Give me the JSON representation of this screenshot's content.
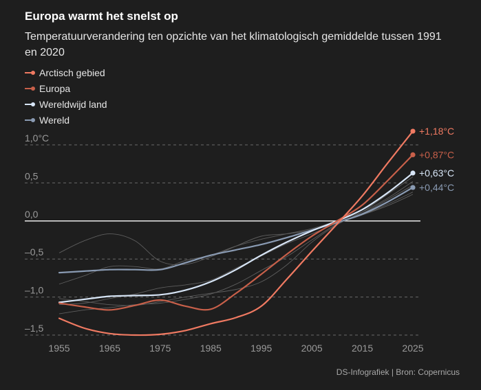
{
  "title": "Europa warmt het snelst op",
  "subtitle": "Temperatuurverandering ten opzichte van het klimatologisch gemiddelde tussen 1991 en 2020",
  "source": "DS-Infografiek | Bron: Copernicus",
  "legend": [
    {
      "label": "Arctisch gebied",
      "color": "#f07a62"
    },
    {
      "label": "Europa",
      "color": "#c8604a"
    },
    {
      "label": "Wereldwijd land",
      "color": "#d8e6f7"
    },
    {
      "label": "Wereld",
      "color": "#8a9bb3"
    }
  ],
  "chart_data": {
    "type": "line",
    "title": "Europa warmt het snelst op",
    "subtitle": "Temperatuurverandering ten opzichte van het klimatologisch gemiddelde tussen 1991 en 2020",
    "xlabel": "",
    "ylabel": "",
    "xlim": [
      1955,
      2025
    ],
    "ylim": [
      -1.5,
      1.0
    ],
    "x_ticks": [
      1955,
      1965,
      1975,
      1985,
      1995,
      2005,
      2015,
      2025
    ],
    "x_tick_labels": [
      "1955",
      "1965",
      "1975",
      "1985",
      "1995",
      "2005",
      "2015",
      "2025"
    ],
    "y_ticks": [
      1.0,
      0.5,
      0.0,
      -0.5,
      -1.0,
      -1.5
    ],
    "y_tick_labels": [
      "1,0°C",
      "0,5",
      "0,0",
      "–0,5",
      "–1,0",
      "–1,5"
    ],
    "zero_line": true,
    "grid": "dashed horizontal",
    "legend_position": "top-left",
    "series": [
      {
        "name": "Arctisch gebied",
        "color": "#f07a62",
        "x": [
          1955,
          1960,
          1965,
          1970,
          1975,
          1980,
          1985,
          1990,
          1995,
          2000,
          2005,
          2010,
          2015,
          2020,
          2025
        ],
        "y": [
          -1.28,
          -1.41,
          -1.48,
          -1.5,
          -1.49,
          -1.44,
          -1.35,
          -1.27,
          -1.12,
          -0.77,
          -0.4,
          -0.04,
          0.33,
          0.76,
          1.18
        ],
        "end_label": "+1,18°C"
      },
      {
        "name": "Europa",
        "color": "#c8604a",
        "x": [
          1955,
          1960,
          1965,
          1970,
          1975,
          1980,
          1985,
          1990,
          1995,
          2000,
          2005,
          2010,
          2015,
          2020,
          2025
        ],
        "y": [
          -1.08,
          -1.13,
          -1.17,
          -1.11,
          -1.04,
          -1.12,
          -1.16,
          -0.95,
          -0.7,
          -0.44,
          -0.2,
          0.0,
          0.21,
          0.53,
          0.87
        ],
        "end_label": "+0,87°C"
      },
      {
        "name": "Wereldwijd land",
        "color": "#d8e6f7",
        "x": [
          1955,
          1960,
          1965,
          1970,
          1975,
          1980,
          1985,
          1990,
          1995,
          2000,
          2005,
          2010,
          2015,
          2020,
          2025
        ],
        "y": [
          -1.07,
          -1.03,
          -0.99,
          -0.98,
          -0.97,
          -0.91,
          -0.8,
          -0.64,
          -0.45,
          -0.28,
          -0.13,
          0.0,
          0.15,
          0.37,
          0.63
        ],
        "end_label": "+0,63°C"
      },
      {
        "name": "Wereld",
        "color": "#8a9bb3",
        "x": [
          1955,
          1960,
          1965,
          1970,
          1975,
          1980,
          1985,
          1990,
          1995,
          2000,
          2005,
          2010,
          2015,
          2020,
          2025
        ],
        "y": [
          -0.68,
          -0.66,
          -0.64,
          -0.64,
          -0.64,
          -0.55,
          -0.45,
          -0.38,
          -0.31,
          -0.22,
          -0.12,
          -0.02,
          0.09,
          0.25,
          0.44
        ],
        "end_label": "+0,44°C"
      }
    ],
    "background_lines": [
      {
        "x": [
          1955,
          1960,
          1965,
          1970,
          1975,
          1980,
          1985,
          1990,
          1995,
          2000,
          2005,
          2010,
          2015,
          2020,
          2025
        ],
        "y": [
          -0.42,
          -0.26,
          -0.17,
          -0.26,
          -0.53,
          -0.57,
          -0.47,
          -0.33,
          -0.2,
          -0.17,
          -0.12,
          -0.02,
          0.08,
          0.2,
          0.35
        ]
      },
      {
        "x": [
          1955,
          1960,
          1965,
          1970,
          1975,
          1980,
          1985,
          1990,
          1995,
          2000,
          2005,
          2010,
          2015,
          2020,
          2025
        ],
        "y": [
          -0.83,
          -0.72,
          -0.6,
          -0.6,
          -0.63,
          -0.52,
          -0.45,
          -0.33,
          -0.24,
          -0.17,
          -0.1,
          0.0,
          0.12,
          0.3,
          0.52
        ]
      },
      {
        "x": [
          1955,
          1960,
          1965,
          1970,
          1975,
          1980,
          1985,
          1990,
          1995,
          2000,
          2005,
          2010,
          2015,
          2020,
          2025
        ],
        "y": [
          -1.1,
          -1.08,
          -1.02,
          -0.96,
          -0.88,
          -0.84,
          -0.78,
          -0.62,
          -0.46,
          -0.3,
          -0.17,
          -0.03,
          0.1,
          0.28,
          0.47
        ]
      },
      {
        "x": [
          1955,
          1960,
          1965,
          1970,
          1975,
          1980,
          1985,
          1990,
          1995,
          2000,
          2005,
          2010,
          2015,
          2020,
          2025
        ],
        "y": [
          -1.22,
          -1.17,
          -1.14,
          -1.1,
          -1.08,
          -1.03,
          -0.96,
          -0.83,
          -0.65,
          -0.47,
          -0.25,
          -0.04,
          0.08,
          0.22,
          0.38
        ]
      },
      {
        "x": [
          1955,
          1960,
          1965,
          1970,
          1975,
          1980,
          1985,
          1990,
          1995,
          2000,
          2005,
          2010,
          2015,
          2020,
          2025
        ],
        "y": [
          -1.02,
          -1.06,
          -1.1,
          -1.11,
          -1.06,
          -1.0,
          -0.95,
          -0.9,
          -0.8,
          -0.58,
          -0.28,
          -0.05,
          0.12,
          0.35,
          0.58
        ]
      }
    ]
  }
}
